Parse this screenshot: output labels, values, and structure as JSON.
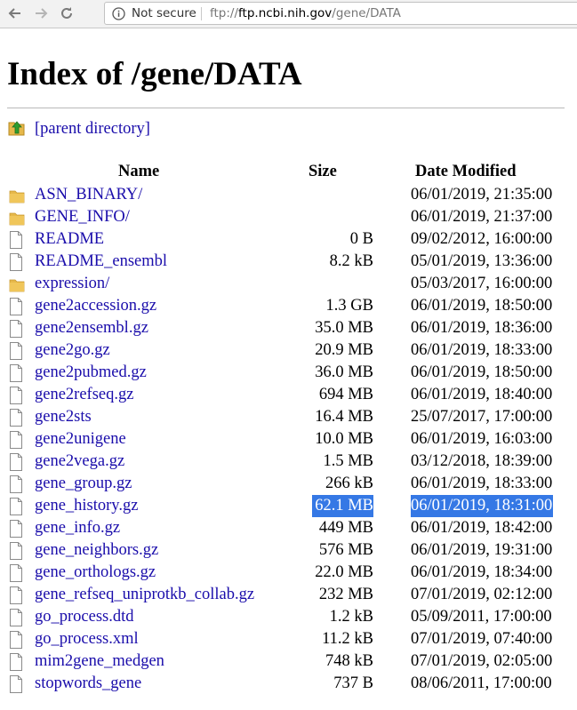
{
  "browser": {
    "security_label": "Not secure",
    "url_scheme": "ftp://",
    "url_host": "ftp.ncbi.nih.gov",
    "url_path": "/gene/DATA",
    "icons": [
      "back-icon",
      "forward-icon",
      "reload-icon",
      "info-icon"
    ]
  },
  "page": {
    "title": "Index of /gene/DATA",
    "parent_link": "[parent directory]",
    "columns": {
      "name": "Name",
      "size": "Size",
      "date": "Date Modified"
    }
  },
  "files": [
    {
      "name": "ASN_BINARY/",
      "size": "",
      "date": "06/01/2019, 21:35:00",
      "type": "folder"
    },
    {
      "name": "GENE_INFO/",
      "size": "",
      "date": "06/01/2019, 21:37:00",
      "type": "folder"
    },
    {
      "name": "README",
      "size": "0 B",
      "date": "09/02/2012, 16:00:00",
      "type": "file"
    },
    {
      "name": "README_ensembl",
      "size": "8.2 kB",
      "date": "05/01/2019, 13:36:00",
      "type": "file"
    },
    {
      "name": "expression/",
      "size": "",
      "date": "05/03/2017, 16:00:00",
      "type": "folder"
    },
    {
      "name": "gene2accession.gz",
      "size": "1.3 GB",
      "date": "06/01/2019, 18:50:00",
      "type": "file"
    },
    {
      "name": "gene2ensembl.gz",
      "size": "35.0 MB",
      "date": "06/01/2019, 18:36:00",
      "type": "file"
    },
    {
      "name": "gene2go.gz",
      "size": "20.9 MB",
      "date": "06/01/2019, 18:33:00",
      "type": "file"
    },
    {
      "name": "gene2pubmed.gz",
      "size": "36.0 MB",
      "date": "06/01/2019, 18:50:00",
      "type": "file"
    },
    {
      "name": "gene2refseq.gz",
      "size": "694 MB",
      "date": "06/01/2019, 18:40:00",
      "type": "file"
    },
    {
      "name": "gene2sts",
      "size": "16.4 MB",
      "date": "25/07/2017, 17:00:00",
      "type": "file"
    },
    {
      "name": "gene2unigene",
      "size": "10.0 MB",
      "date": "06/01/2019, 16:03:00",
      "type": "file"
    },
    {
      "name": "gene2vega.gz",
      "size": "1.5 MB",
      "date": "03/12/2018, 18:39:00",
      "type": "file"
    },
    {
      "name": "gene_group.gz",
      "size": "266 kB",
      "date": "06/01/2019, 18:33:00",
      "type": "file"
    },
    {
      "name": "gene_history.gz",
      "size": "62.1 MB",
      "date": "06/01/2019, 18:31:00",
      "type": "file",
      "selected": true
    },
    {
      "name": "gene_info.gz",
      "size": "449 MB",
      "date": "06/01/2019, 18:42:00",
      "type": "file"
    },
    {
      "name": "gene_neighbors.gz",
      "size": "576 MB",
      "date": "06/01/2019, 19:31:00",
      "type": "file"
    },
    {
      "name": "gene_orthologs.gz",
      "size": "22.0 MB",
      "date": "06/01/2019, 18:34:00",
      "type": "file"
    },
    {
      "name": "gene_refseq_uniprotkb_collab.gz",
      "size": "232 MB",
      "date": "07/01/2019, 02:12:00",
      "type": "file"
    },
    {
      "name": "go_process.dtd",
      "size": "1.2 kB",
      "date": "05/09/2011, 17:00:00",
      "type": "file"
    },
    {
      "name": "go_process.xml",
      "size": "11.2 kB",
      "date": "07/01/2019, 07:40:00",
      "type": "file"
    },
    {
      "name": "mim2gene_medgen",
      "size": "748 kB",
      "date": "07/01/2019, 02:05:00",
      "type": "file"
    },
    {
      "name": "stopwords_gene",
      "size": "737 B",
      "date": "08/06/2011, 17:00:00",
      "type": "file"
    }
  ],
  "colors": {
    "link": "#1a0dab",
    "selection": "#3578e5",
    "folder": "#e6b84a"
  }
}
